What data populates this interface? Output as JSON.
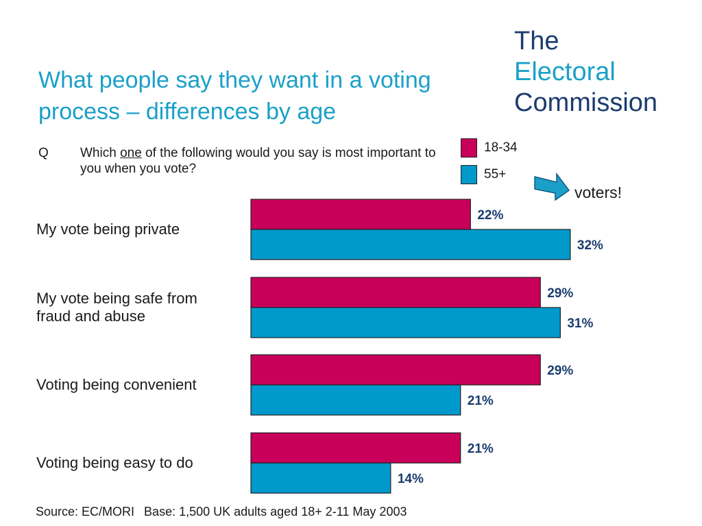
{
  "title_line1": "What people say they want in a voting",
  "title_line2": "process – differences by age",
  "brand": {
    "line1": "The",
    "line2": "Electoral",
    "line3": "Commission"
  },
  "question": {
    "marker": "Q",
    "text_before": "Which ",
    "text_underlined": "one",
    "text_after": " of the following would you say is most important to you when you vote?"
  },
  "callout": "voters!",
  "source": {
    "label": "Source: EC/MORI",
    "base": "Base: 1,500 UK adults aged 18+ 2-11 May 2003"
  },
  "colors": {
    "young": "#c8005a",
    "old": "#0099cc",
    "title": "#1aa0c8",
    "brand_dark": "#1b3c6e"
  },
  "chart_data": {
    "type": "bar",
    "orientation": "horizontal",
    "categories": [
      "My vote being private",
      "My vote being safe from fraud and abuse",
      "Voting being convenient",
      "Voting being easy to do"
    ],
    "category_lines": [
      [
        "My vote being private"
      ],
      [
        "My vote being safe from",
        "fraud and abuse"
      ],
      [
        "Voting being convenient"
      ],
      [
        "Voting being easy to do"
      ]
    ],
    "series": [
      {
        "name": "18-34",
        "values": [
          22,
          29,
          29,
          21
        ],
        "labels": [
          "22%",
          "29%",
          "29%",
          "21%"
        ]
      },
      {
        "name": "55+",
        "values": [
          32,
          31,
          21,
          14
        ],
        "labels": [
          "32%",
          "31%",
          "21%",
          "14%"
        ]
      }
    ],
    "unit": "%",
    "legend": "top-right",
    "grid": false
  }
}
